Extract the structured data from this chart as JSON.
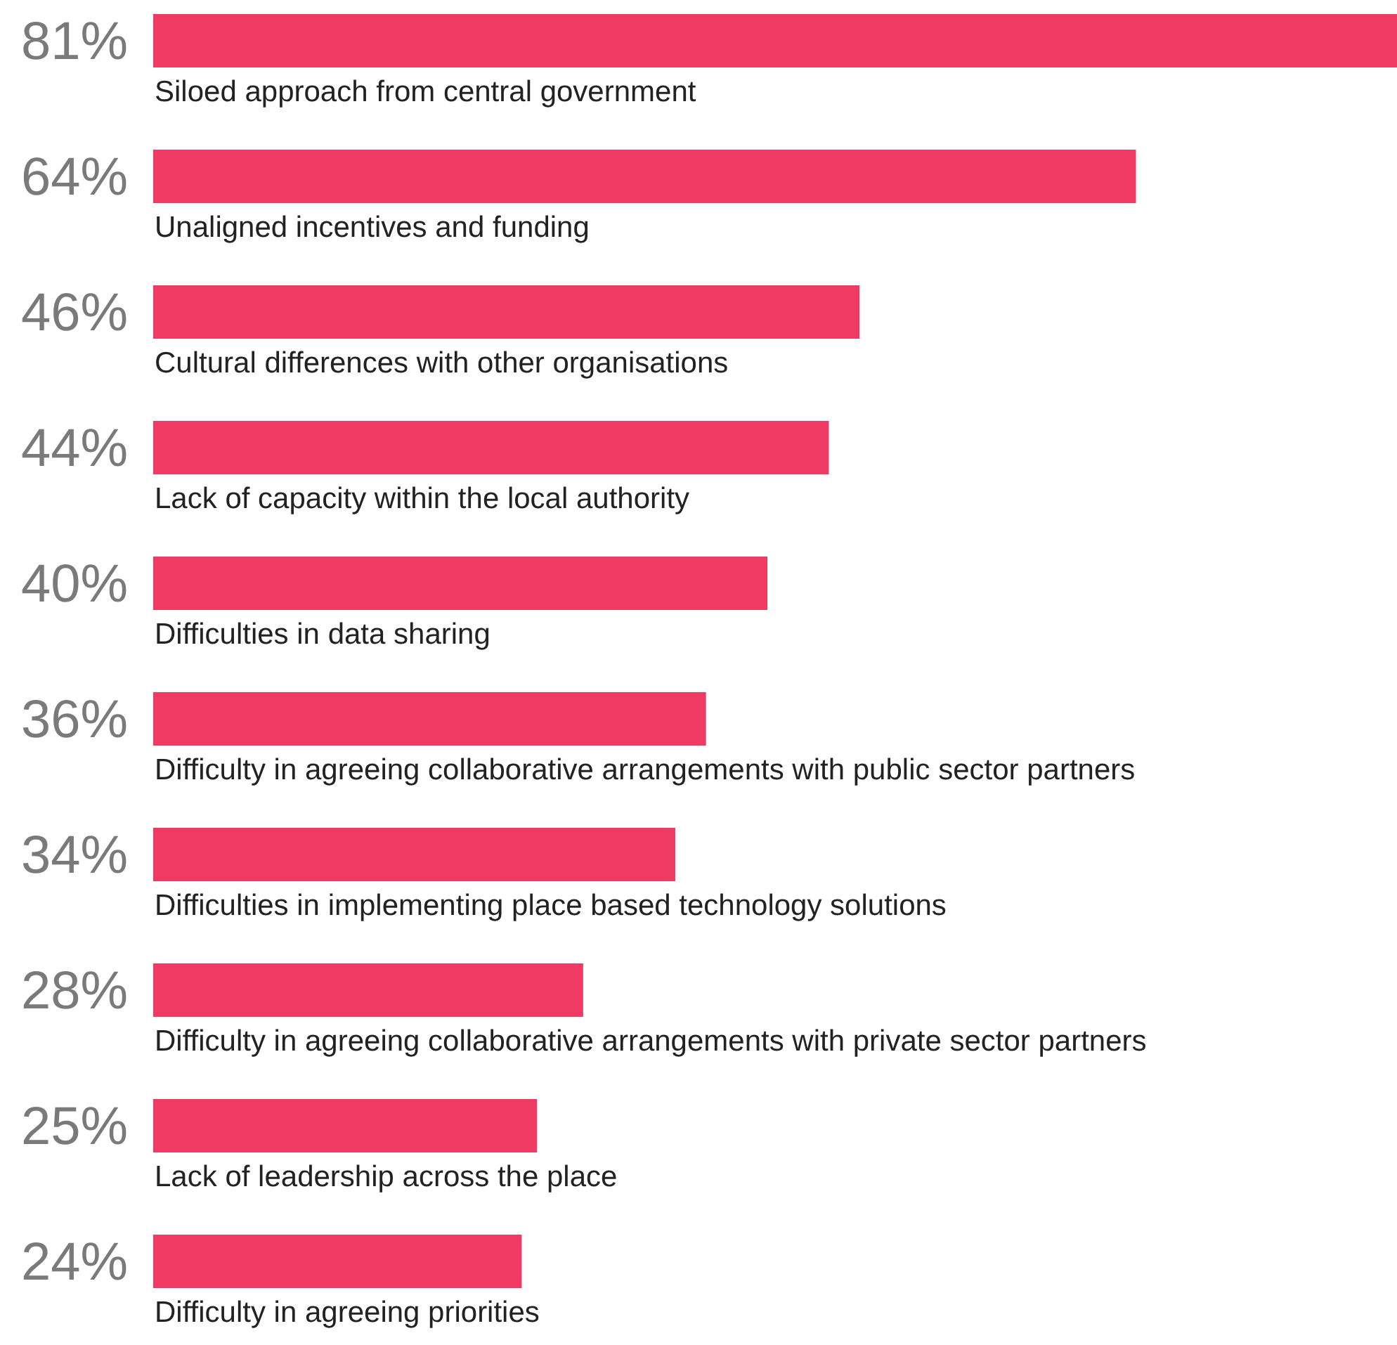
{
  "chart_data": {
    "type": "bar",
    "orientation": "horizontal",
    "categories": [
      "Siloed approach from central government",
      "Unaligned incentives and funding",
      "Cultural differences with other organisations",
      "Lack of capacity within the local authority",
      "Difficulties in data sharing",
      "Difficulty in agreeing collaborative arrangements with public sector partners",
      "Difficulties in implementing place based technology solutions",
      "Difficulty in agreeing collaborative arrangements with private sector partners",
      "Lack of leadership across the place",
      "Difficulty in agreeing priorities"
    ],
    "values": [
      81,
      64,
      46,
      44,
      40,
      36,
      34,
      28,
      25,
      24
    ],
    "value_labels": [
      "81%",
      "64%",
      "46%",
      "44%",
      "40%",
      "36%",
      "34%",
      "28%",
      "25%",
      "24%"
    ],
    "color": "#ef3a63"
  }
}
